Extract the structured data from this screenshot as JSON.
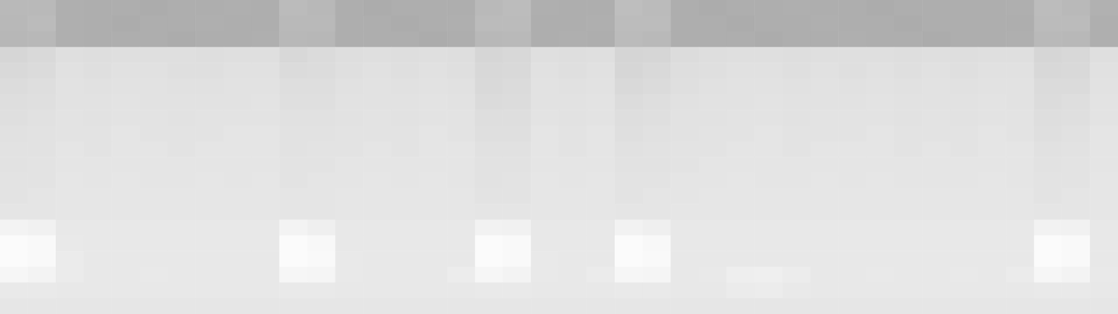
{
  "chart_data": {
    "type": "heatmap",
    "tick_labels": false,
    "zlim": [
      0,
      100
    ],
    "cells": [
      [
        52,
        52,
        45,
        44,
        44,
        43,
        44,
        44,
        45,
        44,
        53,
        51,
        44,
        43,
        44,
        44,
        44,
        52,
        54,
        45,
        44,
        44,
        55,
        53,
        44,
        43,
        44,
        44,
        45,
        44,
        44,
        43,
        44,
        44,
        44,
        44,
        45,
        54,
        52,
        46
      ],
      [
        51,
        53,
        45,
        44,
        43,
        44,
        44,
        45,
        44,
        44,
        52,
        52,
        44,
        44,
        43,
        44,
        45,
        53,
        53,
        44,
        44,
        45,
        54,
        54,
        44,
        44,
        43,
        44,
        44,
        45,
        44,
        44,
        43,
        44,
        44,
        44,
        44,
        53,
        53,
        45
      ],
      [
        50,
        51,
        45,
        44,
        44,
        44,
        43,
        44,
        44,
        45,
        51,
        50,
        44,
        44,
        44,
        43,
        44,
        51,
        52,
        44,
        45,
        44,
        53,
        52,
        44,
        44,
        44,
        43,
        44,
        44,
        45,
        44,
        44,
        43,
        44,
        44,
        45,
        52,
        51,
        45
      ],
      [
        72,
        74,
        78,
        77,
        78,
        78,
        78,
        77,
        78,
        78,
        73,
        75,
        77,
        78,
        77,
        78,
        77,
        72,
        73,
        78,
        77,
        78,
        71,
        72,
        76,
        77,
        78,
        78,
        77,
        78,
        78,
        78,
        77,
        78,
        77,
        78,
        78,
        72,
        73,
        78
      ],
      [
        74,
        75,
        79,
        78,
        79,
        79,
        78,
        78,
        79,
        79,
        75,
        76,
        78,
        79,
        78,
        79,
        78,
        73,
        74,
        79,
        78,
        79,
        72,
        74,
        77,
        78,
        79,
        79,
        78,
        79,
        78,
        79,
        78,
        79,
        78,
        79,
        79,
        73,
        74,
        79
      ],
      [
        76,
        77,
        80,
        79,
        80,
        80,
        79,
        79,
        80,
        80,
        77,
        77,
        79,
        80,
        79,
        80,
        79,
        74,
        75,
        80,
        79,
        80,
        74,
        75,
        78,
        79,
        80,
        80,
        79,
        80,
        79,
        80,
        79,
        80,
        79,
        80,
        80,
        75,
        75,
        80
      ],
      [
        77,
        78,
        80,
        80,
        81,
        80,
        80,
        80,
        80,
        81,
        78,
        78,
        80,
        80,
        80,
        81,
        80,
        75,
        76,
        80,
        80,
        81,
        76,
        77,
        79,
        80,
        80,
        81,
        80,
        80,
        80,
        81,
        80,
        80,
        80,
        81,
        80,
        76,
        77,
        81
      ],
      [
        78,
        79,
        81,
        80,
        81,
        81,
        80,
        81,
        81,
        81,
        79,
        79,
        80,
        81,
        80,
        81,
        81,
        77,
        77,
        81,
        80,
        81,
        77,
        78,
        80,
        80,
        81,
        81,
        80,
        81,
        81,
        81,
        80,
        81,
        80,
        81,
        81,
        77,
        78,
        81
      ],
      [
        79,
        80,
        81,
        81,
        82,
        81,
        81,
        81,
        82,
        82,
        80,
        80,
        81,
        81,
        81,
        82,
        81,
        78,
        78,
        82,
        81,
        82,
        78,
        79,
        80,
        81,
        81,
        82,
        81,
        81,
        81,
        82,
        81,
        81,
        81,
        82,
        81,
        78,
        79,
        82
      ],
      [
        80,
        80,
        82,
        81,
        82,
        82,
        81,
        82,
        82,
        82,
        80,
        81,
        81,
        82,
        81,
        82,
        82,
        79,
        79,
        82,
        81,
        82,
        79,
        80,
        81,
        81,
        82,
        82,
        81,
        82,
        82,
        82,
        81,
        82,
        81,
        82,
        82,
        79,
        80,
        82
      ],
      [
        80,
        81,
        82,
        82,
        82,
        82,
        82,
        82,
        82,
        82,
        81,
        81,
        82,
        82,
        82,
        82,
        82,
        80,
        80,
        82,
        82,
        82,
        80,
        80,
        81,
        82,
        82,
        82,
        82,
        82,
        82,
        82,
        82,
        82,
        82,
        82,
        82,
        80,
        81,
        82
      ],
      [
        81,
        81,
        83,
        82,
        83,
        82,
        82,
        83,
        82,
        83,
        81,
        82,
        82,
        83,
        82,
        83,
        82,
        80,
        81,
        83,
        82,
        83,
        81,
        81,
        82,
        82,
        83,
        82,
        82,
        83,
        82,
        83,
        82,
        82,
        82,
        83,
        82,
        81,
        81,
        83
      ],
      [
        81,
        82,
        83,
        83,
        83,
        83,
        83,
        83,
        83,
        83,
        82,
        82,
        83,
        83,
        83,
        83,
        83,
        81,
        81,
        83,
        83,
        83,
        81,
        82,
        82,
        83,
        83,
        83,
        83,
        83,
        83,
        83,
        83,
        83,
        83,
        83,
        83,
        81,
        82,
        83
      ],
      [
        82,
        82,
        83,
        83,
        83,
        83,
        83,
        83,
        83,
        83,
        82,
        82,
        83,
        83,
        83,
        83,
        83,
        82,
        82,
        83,
        83,
        83,
        82,
        82,
        83,
        83,
        83,
        83,
        83,
        83,
        83,
        83,
        83,
        83,
        83,
        83,
        83,
        82,
        82,
        83
      ],
      [
        92,
        90,
        84,
        84,
        84,
        84,
        84,
        84,
        84,
        84,
        92,
        89,
        84,
        84,
        84,
        84,
        84,
        91,
        90,
        84,
        84,
        84,
        91,
        89,
        84,
        84,
        84,
        84,
        84,
        84,
        84,
        84,
        84,
        84,
        84,
        84,
        84,
        91,
        90,
        84
      ],
      [
        97,
        96,
        85,
        84,
        84,
        84,
        84,
        84,
        84,
        84,
        97,
        95,
        84,
        84,
        84,
        84,
        84,
        97,
        96,
        84,
        84,
        84,
        97,
        95,
        84,
        84,
        84,
        84,
        84,
        84,
        84,
        84,
        84,
        84,
        84,
        84,
        84,
        97,
        96,
        84
      ],
      [
        97,
        96,
        86,
        84,
        84,
        84,
        84,
        84,
        84,
        84,
        97,
        96,
        85,
        84,
        84,
        84,
        84,
        97,
        96,
        85,
        84,
        84,
        97,
        96,
        84,
        84,
        84,
        84,
        84,
        84,
        84,
        84,
        84,
        84,
        84,
        84,
        84,
        97,
        96,
        84
      ],
      [
        94,
        92,
        86,
        84,
        84,
        85,
        84,
        84,
        84,
        84,
        94,
        93,
        85,
        84,
        84,
        84,
        87,
        94,
        92,
        85,
        84,
        86,
        94,
        93,
        84,
        85,
        88,
        89,
        87,
        84,
        84,
        85,
        84,
        84,
        85,
        84,
        86,
        94,
        92,
        85
      ],
      [
        85,
        85,
        84,
        84,
        84,
        84,
        84,
        84,
        84,
        84,
        85,
        85,
        84,
        84,
        84,
        84,
        84,
        85,
        85,
        84,
        84,
        84,
        85,
        85,
        84,
        84,
        86,
        87,
        85,
        84,
        84,
        84,
        84,
        84,
        84,
        84,
        84,
        85,
        85,
        84
      ],
      [
        83,
        83,
        83,
        83,
        83,
        83,
        83,
        83,
        83,
        83,
        83,
        83,
        83,
        83,
        83,
        83,
        83,
        83,
        83,
        83,
        83,
        83,
        83,
        83,
        83,
        83,
        83,
        83,
        83,
        83,
        83,
        83,
        83,
        83,
        83,
        83,
        83,
        83,
        83,
        83
      ]
    ]
  }
}
